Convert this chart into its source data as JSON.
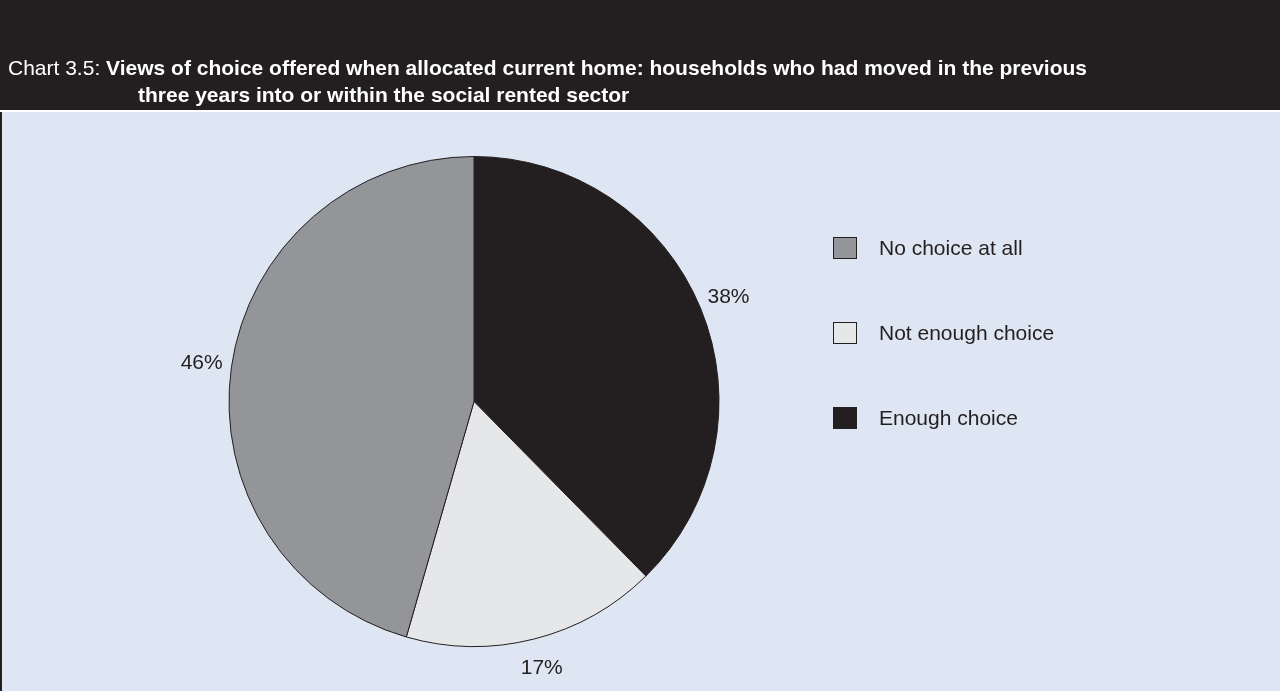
{
  "chart_data": {
    "type": "pie",
    "title": "Chart 3.5: Views of choice offered when allocated current home: households who had moved in the previous three years into or within the social rented sector",
    "categories": [
      "No choice at all",
      "Not enough choice",
      "Enough choice"
    ],
    "values": [
      46,
      17,
      38
    ],
    "colors": [
      "#939598",
      "#e6e7e8",
      "#231f20"
    ],
    "value_labels": [
      "46%",
      "17%",
      "38%"
    ],
    "legend": "right"
  }
}
